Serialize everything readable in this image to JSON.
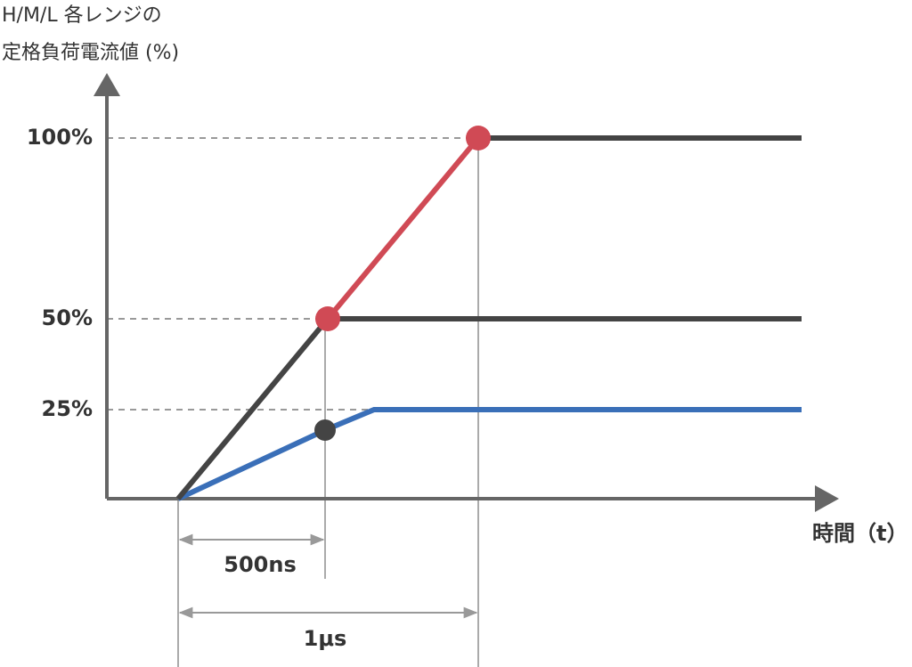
{
  "y_axis": {
    "label_lines": [
      "H/M/L 各レンジの",
      "定格負荷電流値 (%)"
    ],
    "ticks": [
      "100%",
      "50%",
      "25%"
    ]
  },
  "x_axis": {
    "label": "時間（t）"
  },
  "annotations": [
    "500ns",
    "1μs"
  ]
}
